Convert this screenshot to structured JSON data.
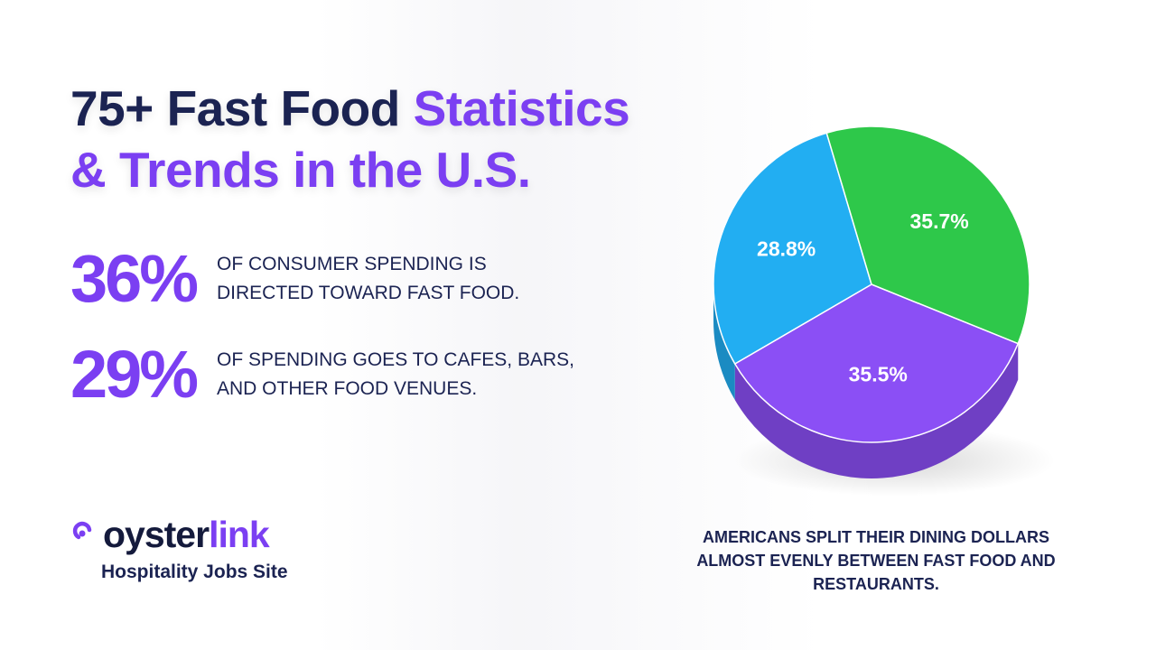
{
  "title": {
    "line1_dark": "75+ Fast Food ",
    "line1_accent": "Statistics",
    "line2_accent": "& Trends in the U.S."
  },
  "stats": [
    {
      "value": "36%",
      "line1": "OF CONSUMER SPENDING IS",
      "line2": "DIRECTED TOWARD FAST FOOD."
    },
    {
      "value": "29%",
      "line1": "OF SPENDING GOES TO CAFES, BARS,",
      "line2": "AND OTHER FOOD VENUES."
    }
  ],
  "logo": {
    "word_oyster": "oyster",
    "word_link": "link",
    "tagline": "Hospitality Jobs Site",
    "icon": "oysterlink-logo-icon"
  },
  "chart_data": {
    "type": "pie",
    "slices": [
      {
        "label": "35.5%",
        "value": 35.5,
        "color": "#8b4ff5"
      },
      {
        "label": "28.8%",
        "value": 28.8,
        "color": "#22aef2"
      },
      {
        "label": "35.7%",
        "value": 35.7,
        "color": "#2ec84a"
      }
    ]
  },
  "caption": {
    "line1": "AMERICANS SPLIT THEIR DINING DOLLARS",
    "line2": "ALMOST EVENLY BETWEEN FAST FOOD AND",
    "line3": "RESTAURANTS."
  },
  "colors": {
    "navy": "#1b2352",
    "purple": "#7b3ff2"
  }
}
